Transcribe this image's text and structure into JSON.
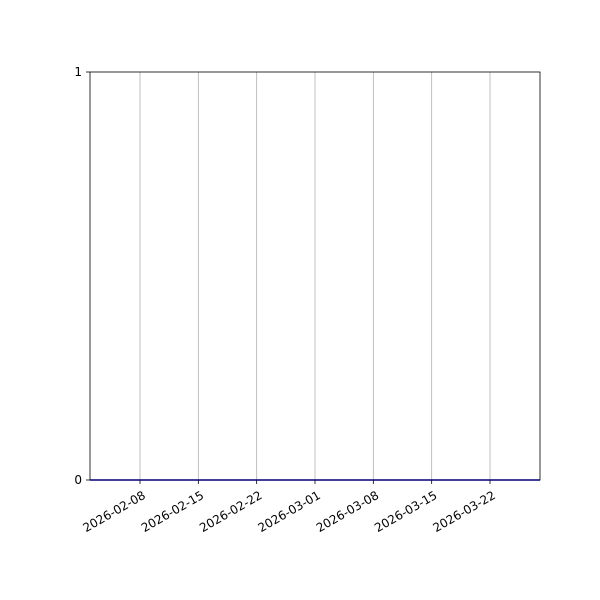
{
  "chart_data": {
    "type": "line",
    "title": "",
    "xlabel": "",
    "ylabel": "",
    "xlim": [
      "2026-02-02",
      "2026-03-28"
    ],
    "ylim": [
      0,
      1
    ],
    "x_ticks": [
      "2026-02-08",
      "2026-02-15",
      "2026-02-22",
      "2026-03-01",
      "2026-03-08",
      "2026-03-15",
      "2026-03-22"
    ],
    "y_ticks": [
      "0",
      "1"
    ],
    "grid": "x-only",
    "series": [
      {
        "color": "#0000ff",
        "x": [
          "2026-02-02",
          "2026-03-28"
        ],
        "y": [
          0,
          0
        ]
      }
    ]
  }
}
